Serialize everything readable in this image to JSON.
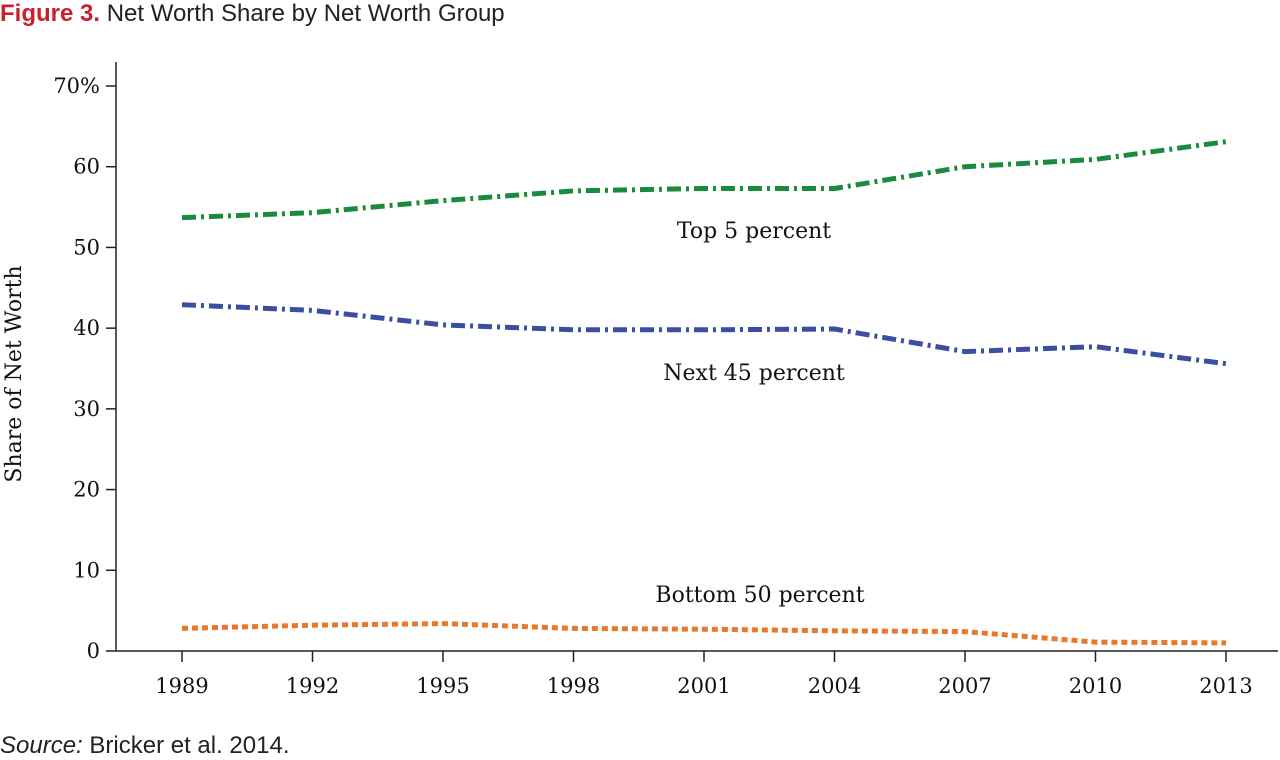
{
  "figure": {
    "label": "Figure 3.",
    "title": "Net Worth Share by Net Worth Group"
  },
  "source": {
    "label": "Source:",
    "text": "Bricker et al. 2014."
  },
  "chart_data": {
    "type": "line",
    "title": "Net Worth Share by Net Worth Group",
    "xlabel": "",
    "ylabel": "Share of Net Worth",
    "x": [
      "1989",
      "1992",
      "1995",
      "1998",
      "2001",
      "2004",
      "2007",
      "2010",
      "2013"
    ],
    "ylim": [
      0,
      70
    ],
    "yticks": [
      0,
      10,
      20,
      30,
      40,
      50,
      60,
      70
    ],
    "ytick_labels": [
      "0",
      "10",
      "20",
      "30",
      "40",
      "50",
      "60",
      "70%"
    ],
    "grid": false,
    "series": [
      {
        "name": "Top 5 percent",
        "color": "#1a8a3c",
        "dash": "dash-dot",
        "values": [
          53.7,
          54.3,
          55.8,
          57.0,
          57.3,
          57.3,
          60.0,
          60.9,
          63.1
        ]
      },
      {
        "name": "Next 45 percent",
        "color": "#3b4fa0",
        "dash": "dash-dot",
        "values": [
          42.9,
          42.2,
          40.4,
          39.8,
          39.8,
          39.9,
          37.1,
          37.7,
          35.6
        ]
      },
      {
        "name": "Bottom 50 percent",
        "color": "#e8792a",
        "dash": "dotted",
        "values": [
          2.8,
          3.2,
          3.4,
          2.8,
          2.7,
          2.5,
          2.4,
          1.1,
          1.0
        ]
      }
    ]
  }
}
